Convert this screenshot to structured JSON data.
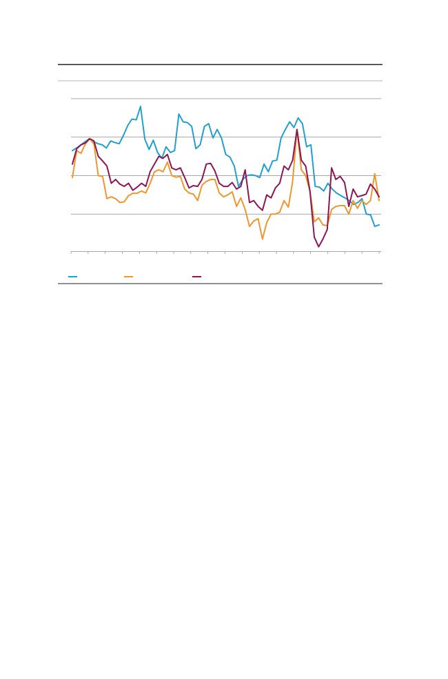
{
  "chart_data": {
    "type": "line",
    "title": "",
    "xlabel": "",
    "ylabel": "",
    "ylim": [
      0,
      4
    ],
    "grid": true,
    "legend_placement": "bottom",
    "series": [
      {
        "name": "",
        "color": "#1f9fd2",
        "values": [
          2.65,
          2.72,
          2.8,
          2.88,
          2.96,
          2.88,
          2.83,
          2.8,
          2.72,
          2.9,
          2.86,
          2.83,
          3.05,
          3.3,
          3.47,
          3.45,
          3.8,
          2.95,
          2.68,
          2.92,
          2.6,
          2.45,
          2.75,
          2.6,
          2.65,
          3.6,
          3.4,
          3.38,
          3.28,
          2.7,
          2.8,
          3.28,
          3.35,
          2.98,
          3.2,
          2.98,
          2.55,
          2.48,
          2.25,
          1.72,
          1.9,
          2.0,
          2.02,
          2.0,
          1.95,
          2.3,
          2.1,
          2.38,
          2.4,
          2.98,
          3.2,
          3.4,
          3.25,
          3.5,
          3.35,
          2.75,
          2.8,
          1.72,
          1.7,
          1.6,
          1.8,
          1.65,
          1.55,
          1.48,
          1.42,
          1.35,
          1.25,
          1.3,
          1.4,
          1.0,
          0.98,
          0.68,
          0.72
        ]
      },
      {
        "name": "",
        "color": "#f0962a",
        "values": [
          1.95,
          2.65,
          2.58,
          2.82,
          2.96,
          2.82,
          2.0,
          1.98,
          1.4,
          1.45,
          1.4,
          1.3,
          1.32,
          1.48,
          1.54,
          1.54,
          1.6,
          1.55,
          1.8,
          2.1,
          2.15,
          2.1,
          2.35,
          2.0,
          1.96,
          1.98,
          1.65,
          1.55,
          1.52,
          1.35,
          1.75,
          1.85,
          1.9,
          1.9,
          1.55,
          1.45,
          1.5,
          1.58,
          1.2,
          1.42,
          1.12,
          0.68,
          0.82,
          0.88,
          0.35,
          0.78,
          1.0,
          1.0,
          1.05,
          1.35,
          1.18,
          1.85,
          3.2,
          2.15,
          2.0,
          1.6,
          0.8,
          0.9,
          0.72,
          0.7,
          1.12,
          1.2,
          1.22,
          1.22,
          1.0,
          1.35,
          1.15,
          1.35,
          1.25,
          1.35,
          2.05,
          1.35
        ]
      },
      {
        "name": "",
        "color": "#8e1453",
        "values": [
          2.3,
          2.7,
          2.8,
          2.85,
          2.96,
          2.9,
          2.5,
          2.38,
          2.25,
          1.8,
          1.9,
          1.78,
          1.72,
          1.8,
          1.62,
          1.7,
          1.8,
          1.72,
          2.1,
          2.3,
          2.5,
          2.45,
          2.55,
          2.2,
          2.15,
          2.2,
          1.95,
          1.68,
          1.74,
          1.72,
          1.9,
          2.3,
          2.32,
          2.12,
          1.8,
          1.72,
          1.72,
          1.82,
          1.65,
          1.72,
          2.15,
          1.3,
          1.35,
          1.2,
          1.1,
          1.5,
          1.42,
          1.68,
          1.8,
          2.25,
          2.15,
          2.4,
          3.2,
          2.4,
          2.25,
          1.6,
          0.4,
          0.15,
          0.35,
          0.6,
          2.2,
          1.9,
          1.98,
          1.82,
          1.2,
          1.65,
          1.45,
          1.48,
          1.52,
          1.78,
          1.65,
          1.45
        ]
      }
    ]
  }
}
